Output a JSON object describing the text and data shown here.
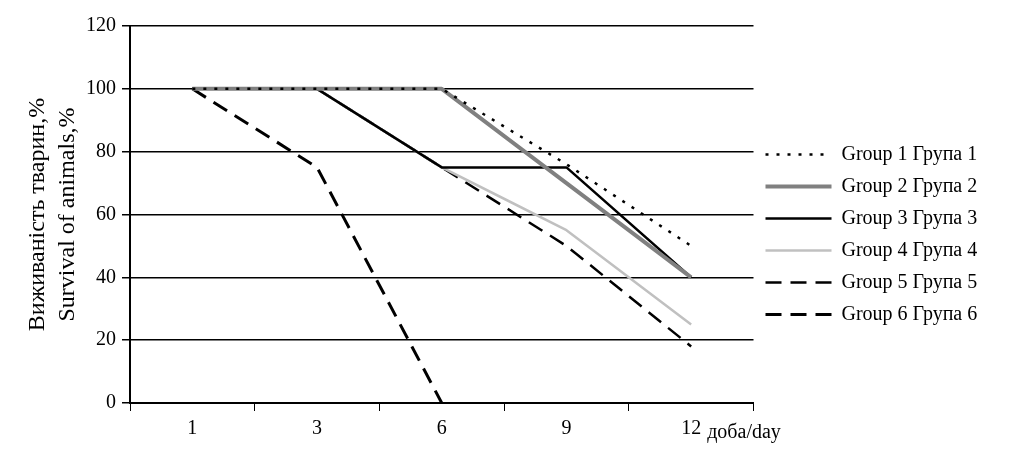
{
  "chart_data": {
    "type": "line",
    "xlabel": "доба/day",
    "ylabel": "Виживаність тварин,%\nSurvival of animals,%",
    "categories": [
      "1",
      "3",
      "6",
      "9",
      "12"
    ],
    "series": [
      {
        "name": "Group 1 Група 1",
        "color": "#000000",
        "line_style": "dotted",
        "values": [
          100,
          100,
          100,
          76,
          50
        ]
      },
      {
        "name": "Group 2 Група 2",
        "color": "#808080",
        "line_style": "solid",
        "values": [
          100,
          100,
          100,
          70,
          40
        ]
      },
      {
        "name": "Group 3 Група 3",
        "color": "#000000",
        "line_style": "solid",
        "values": [
          100,
          100,
          75,
          75,
          40
        ]
      },
      {
        "name": "Group 4 Група 4",
        "color": "#c0c0c0",
        "line_style": "solid",
        "values": [
          100,
          100,
          75,
          55,
          25
        ]
      },
      {
        "name": "Group 5 Група 5",
        "color": "#000000",
        "line_style": "dashed",
        "values": [
          100,
          100,
          75,
          50,
          18
        ]
      },
      {
        "name": "Group 6 Група 6",
        "color": "#000000",
        "line_style": "dashed",
        "values": [
          100,
          75,
          0,
          null,
          null
        ]
      }
    ],
    "ylim": [
      0,
      120
    ],
    "yticks": [
      0,
      20,
      40,
      60,
      80,
      100,
      120
    ],
    "grid": "y",
    "legend": "right",
    "marker": "none"
  }
}
